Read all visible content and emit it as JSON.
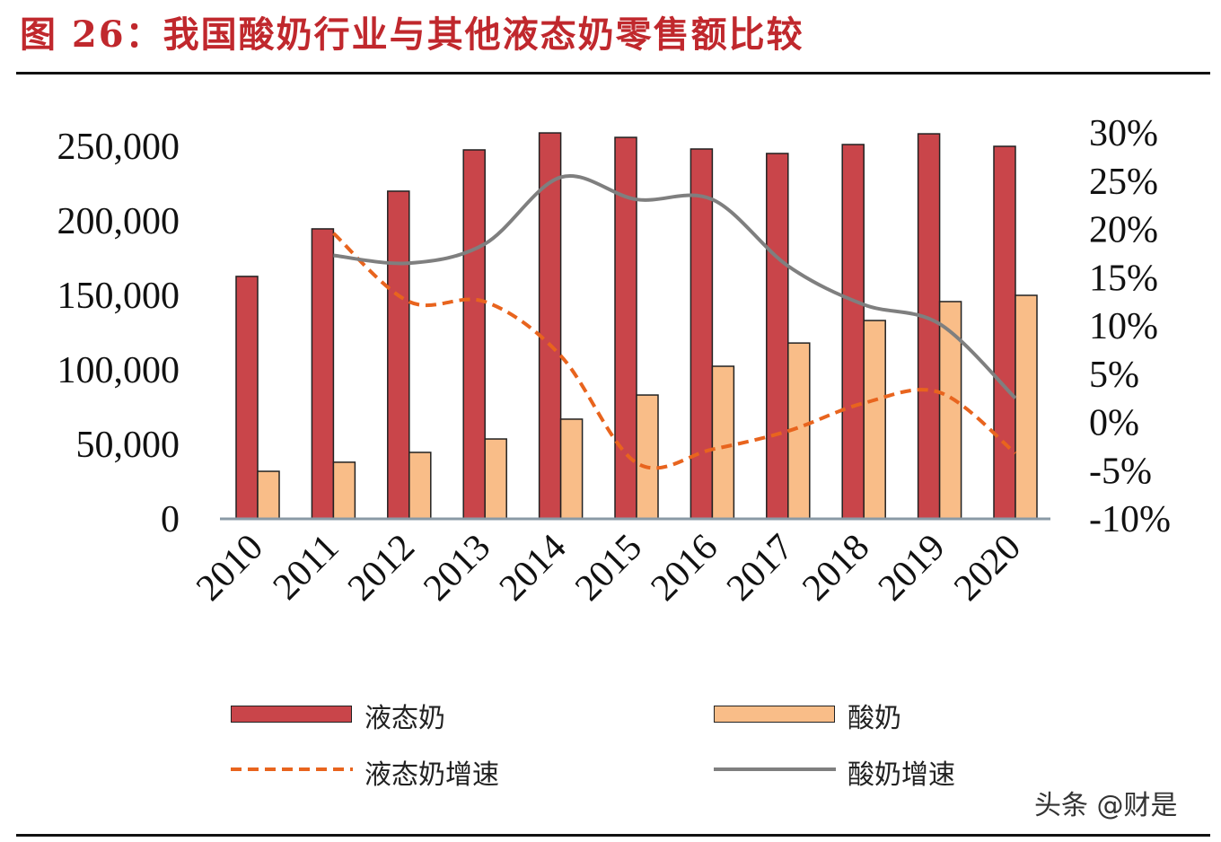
{
  "title": "图 26：我国酸奶行业与其他液态奶零售额比较",
  "watermark": "头条 @财是",
  "chart_data": {
    "type": "bar+line",
    "title": "图 26：我国酸奶行业与其他液态奶零售额比较",
    "categories": [
      "2010",
      "2011",
      "2012",
      "2013",
      "2014",
      "2015",
      "2016",
      "2017",
      "2018",
      "2019",
      "2020"
    ],
    "y_left": {
      "ylim": [
        0,
        250000
      ],
      "ticks": [
        "0",
        "50,000",
        "100,000",
        "150,000",
        "200,000",
        "250,000"
      ],
      "tick_values": [
        0,
        50000,
        100000,
        150000,
        200000,
        250000
      ]
    },
    "y_right": {
      "ylim": [
        -10,
        30
      ],
      "ticks": [
        "-10%",
        "-5%",
        "0%",
        "5%",
        "10%",
        "15%",
        "20%",
        "25%",
        "30%"
      ],
      "tick_values": [
        -10,
        -5,
        0,
        5,
        10,
        15,
        20,
        25,
        30
      ]
    },
    "grid": false,
    "legend_position": "bottom",
    "series": [
      {
        "name": "液态奶",
        "type": "bar",
        "axis": "left",
        "color": "#c9454a",
        "values": [
          162700,
          194600,
          219900,
          247600,
          259000,
          256000,
          248200,
          245200,
          251200,
          258400,
          250000
        ]
      },
      {
        "name": "酸奶",
        "type": "bar",
        "axis": "left",
        "color": "#f9bd88",
        "values": [
          31900,
          38000,
          44600,
          53600,
          66900,
          83100,
          102400,
          118000,
          133100,
          145800,
          150000
        ]
      },
      {
        "name": "液态奶增速",
        "type": "line",
        "axis": "right",
        "color": "#e8641e",
        "dash": true,
        "values": [
          null,
          19.6,
          12.5,
          12.5,
          6.9,
          -4.2,
          -2.8,
          -0.9,
          2.0,
          3.1,
          -3.2
        ]
      },
      {
        "name": "酸奶增速",
        "type": "line",
        "axis": "right",
        "color": "#7f7f7f",
        "dash": false,
        "values": [
          null,
          17.3,
          16.5,
          18.5,
          25.4,
          23.1,
          23.1,
          16.2,
          12.2,
          10.2,
          2.5
        ]
      }
    ]
  }
}
